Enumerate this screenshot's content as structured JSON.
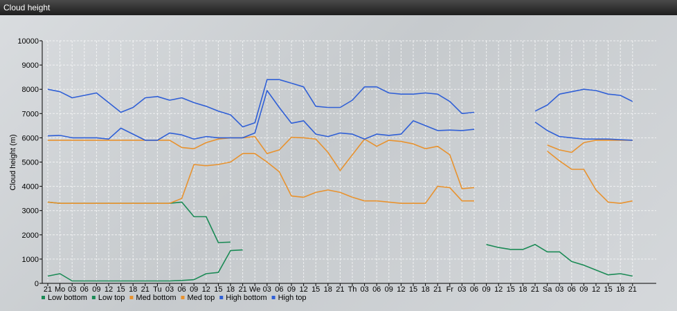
{
  "window": {
    "title": "Cloud height"
  },
  "chart_data": {
    "type": "line",
    "ylabel": "Cloud height (m)",
    "ylim": [
      0,
      10000
    ],
    "yticks": [
      0,
      1000,
      2000,
      3000,
      4000,
      5000,
      6000,
      7000,
      8000,
      9000,
      10000
    ],
    "grid": true,
    "legend_position": "bottom-left",
    "categories": [
      "21",
      "Mo",
      "03",
      "06",
      "09",
      "12",
      "15",
      "18",
      "21",
      "Tu",
      "03",
      "06",
      "09",
      "12",
      "15",
      "18",
      "21",
      "We",
      "03",
      "06",
      "09",
      "12",
      "15",
      "18",
      "21",
      "Th",
      "03",
      "06",
      "09",
      "12",
      "15",
      "18",
      "21",
      "Fr",
      "03",
      "06",
      "09",
      "12",
      "15",
      "18",
      "21",
      "Sa",
      "03",
      "06",
      "09",
      "12",
      "15",
      "18",
      "21"
    ],
    "series": [
      {
        "name": "Low bottom",
        "color": "#1a8a55",
        "values": [
          300,
          400,
          100,
          100,
          100,
          100,
          100,
          100,
          100,
          100,
          100,
          120,
          150,
          400,
          450,
          1350,
          1380,
          null,
          null,
          null,
          null,
          null,
          null,
          null,
          null,
          null,
          null,
          null,
          null,
          null,
          null,
          null,
          null,
          null,
          null,
          null,
          1600,
          1480,
          1400,
          1400,
          1600,
          1300,
          1300,
          900,
          750,
          550,
          350,
          400,
          300
        ]
      },
      {
        "name": "Low top",
        "color": "#1a8a55",
        "values": [
          3350,
          3300,
          3300,
          3300,
          3300,
          3300,
          3300,
          3300,
          3300,
          3300,
          3300,
          3350,
          2750,
          2750,
          1680,
          1700,
          null,
          null,
          null,
          null,
          null,
          null,
          null,
          null,
          null,
          null,
          null,
          null,
          null,
          null,
          null,
          null,
          null,
          null,
          null,
          null,
          null,
          null,
          null,
          null,
          null,
          null,
          null,
          null,
          null,
          null,
          null,
          null,
          null
        ]
      },
      {
        "name": "Med bottom",
        "color": "#e8922e",
        "values": [
          5900,
          5900,
          5900,
          5900,
          5900,
          5900,
          5900,
          5900,
          5900,
          5900,
          5900,
          5600,
          5550,
          5800,
          5950,
          6000,
          6000,
          6050,
          5350,
          5500,
          6020,
          6000,
          5950,
          5400,
          4650,
          5300,
          5950,
          5650,
          5900,
          5850,
          5750,
          5550,
          5650,
          5300,
          3900,
          3950,
          null,
          null,
          null,
          null,
          null,
          5700,
          5500,
          5400,
          5800,
          5900,
          5900,
          5900,
          5900
        ]
      },
      {
        "name": "Med top",
        "color": "#e8922e",
        "values": [
          3350,
          3300,
          3300,
          3300,
          3300,
          3300,
          3300,
          3300,
          3300,
          3300,
          3300,
          3500,
          4900,
          4850,
          4900,
          5000,
          5350,
          5350,
          5000,
          4600,
          3600,
          3550,
          3750,
          3850,
          3750,
          3550,
          3400,
          3400,
          3350,
          3300,
          3300,
          3300,
          4000,
          3950,
          3400,
          3400,
          null,
          null,
          null,
          null,
          null,
          5450,
          5050,
          4700,
          4700,
          3850,
          3350,
          3300,
          3400
        ]
      },
      {
        "name": "High bottom",
        "color": "#2f5fd6",
        "values": [
          6080,
          6100,
          6000,
          6000,
          6000,
          5950,
          6400,
          6150,
          5900,
          5900,
          6200,
          6120,
          5950,
          6050,
          6000,
          6000,
          6000,
          6200,
          7950,
          7250,
          6600,
          6700,
          6150,
          6050,
          6200,
          6150,
          5950,
          6150,
          6100,
          6150,
          6700,
          6500,
          6300,
          6320,
          6300,
          6350,
          null,
          null,
          null,
          null,
          6650,
          6300,
          6050,
          6000,
          5950,
          5950,
          5950,
          5920,
          5900
        ]
      },
      {
        "name": "High top",
        "color": "#2f5fd6",
        "values": [
          8000,
          7900,
          7650,
          7750,
          7850,
          7450,
          7050,
          7250,
          7650,
          7700,
          7550,
          7650,
          7450,
          7300,
          7100,
          6950,
          6450,
          6620,
          8400,
          8400,
          8250,
          8100,
          7300,
          7250,
          7250,
          7550,
          8100,
          8100,
          7850,
          7800,
          7800,
          7850,
          7800,
          7500,
          7000,
          7050,
          null,
          null,
          null,
          null,
          7100,
          7350,
          7800,
          7900,
          8000,
          7950,
          7800,
          7750,
          7500
        ]
      }
    ]
  }
}
